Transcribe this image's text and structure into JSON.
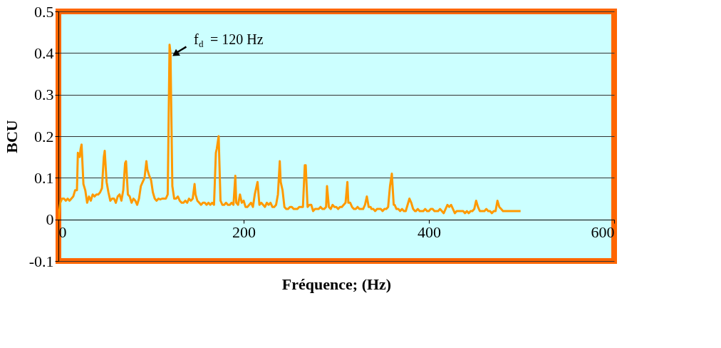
{
  "chart_data": {
    "type": "line",
    "xlabel": "Fréquence; (Hz)",
    "ylabel": "BCU",
    "x": [
      0,
      2,
      4,
      6,
      8,
      10,
      12,
      14,
      16,
      18,
      20,
      21,
      23,
      24,
      25,
      27,
      29,
      31,
      33,
      35,
      37,
      39,
      41,
      43,
      45,
      47,
      49,
      50,
      52,
      54,
      56,
      58,
      60,
      62,
      64,
      66,
      68,
      70,
      72,
      73,
      75,
      77,
      79,
      81,
      83,
      85,
      87,
      89,
      91,
      93,
      95,
      96,
      98,
      100,
      102,
      104,
      106,
      108,
      110,
      112,
      114,
      116,
      118,
      120,
      121,
      123,
      125,
      127,
      129,
      131,
      133,
      135,
      137,
      139,
      141,
      143,
      145,
      147,
      148,
      150,
      152,
      154,
      156,
      158,
      160,
      162,
      164,
      166,
      168,
      170,
      171,
      173,
      175,
      177,
      179,
      181,
      183,
      185,
      187,
      189,
      191,
      192,
      194,
      196,
      198,
      200,
      202,
      204,
      206,
      208,
      210,
      212,
      215,
      217,
      219,
      221,
      223,
      225,
      227,
      229,
      231,
      233,
      235,
      237,
      239,
      240,
      242,
      244,
      246,
      248,
      250,
      252,
      254,
      256,
      258,
      260,
      262,
      264,
      266,
      267,
      269,
      271,
      273,
      275,
      277,
      279,
      281,
      283,
      285,
      287,
      289,
      290,
      292,
      294,
      296,
      298,
      300,
      302,
      304,
      306,
      308,
      310,
      312,
      313,
      315,
      317,
      319,
      321,
      323,
      325,
      327,
      329,
      331,
      333,
      335,
      337,
      338,
      340,
      342,
      344,
      346,
      348,
      350,
      352,
      354,
      356,
      358,
      360,
      362,
      363,
      365,
      367,
      369,
      371,
      373,
      375,
      377,
      379,
      381,
      383,
      385,
      386,
      388,
      390,
      392,
      394,
      396,
      398,
      400,
      402,
      404,
      406,
      408,
      410,
      412,
      414,
      416,
      418,
      420,
      422,
      424,
      426,
      428,
      430,
      432,
      434,
      436,
      437,
      439,
      441,
      443,
      445,
      447,
      449,
      451,
      453,
      455,
      457,
      458,
      460,
      462,
      464,
      466,
      468,
      470,
      472,
      474,
      476,
      478,
      480,
      481,
      483,
      485,
      487,
      489,
      491,
      493,
      495,
      497,
      499
    ],
    "values": [
      0.0,
      0.04,
      0.05,
      0.05,
      0.045,
      0.05,
      0.045,
      0.05,
      0.055,
      0.07,
      0.07,
      0.16,
      0.15,
      0.17,
      0.18,
      0.085,
      0.07,
      0.04,
      0.055,
      0.045,
      0.06,
      0.055,
      0.06,
      0.06,
      0.065,
      0.075,
      0.15,
      0.165,
      0.09,
      0.065,
      0.045,
      0.05,
      0.05,
      0.04,
      0.055,
      0.06,
      0.045,
      0.07,
      0.135,
      0.14,
      0.06,
      0.055,
      0.04,
      0.05,
      0.045,
      0.035,
      0.05,
      0.08,
      0.09,
      0.1,
      0.14,
      0.12,
      0.105,
      0.095,
      0.065,
      0.05,
      0.045,
      0.05,
      0.048,
      0.05,
      0.05,
      0.05,
      0.06,
      0.42,
      0.4,
      0.08,
      0.05,
      0.05,
      0.055,
      0.045,
      0.04,
      0.04,
      0.045,
      0.04,
      0.05,
      0.045,
      0.05,
      0.085,
      0.06,
      0.045,
      0.04,
      0.035,
      0.04,
      0.04,
      0.035,
      0.04,
      0.035,
      0.04,
      0.035,
      0.16,
      0.17,
      0.2,
      0.045,
      0.035,
      0.035,
      0.04,
      0.035,
      0.035,
      0.04,
      0.035,
      0.105,
      0.04,
      0.035,
      0.06,
      0.04,
      0.045,
      0.03,
      0.03,
      0.035,
      0.04,
      0.03,
      0.06,
      0.09,
      0.035,
      0.04,
      0.035,
      0.03,
      0.04,
      0.035,
      0.04,
      0.03,
      0.03,
      0.035,
      0.06,
      0.14,
      0.09,
      0.07,
      0.03,
      0.025,
      0.025,
      0.03,
      0.03,
      0.025,
      0.025,
      0.025,
      0.03,
      0.03,
      0.03,
      0.13,
      0.13,
      0.03,
      0.035,
      0.035,
      0.02,
      0.025,
      0.025,
      0.025,
      0.03,
      0.025,
      0.025,
      0.03,
      0.08,
      0.03,
      0.025,
      0.035,
      0.03,
      0.03,
      0.025,
      0.03,
      0.03,
      0.035,
      0.04,
      0.09,
      0.04,
      0.04,
      0.03,
      0.025,
      0.025,
      0.03,
      0.025,
      0.025,
      0.025,
      0.035,
      0.055,
      0.03,
      0.03,
      0.025,
      0.025,
      0.02,
      0.025,
      0.025,
      0.025,
      0.02,
      0.025,
      0.025,
      0.03,
      0.08,
      0.11,
      0.035,
      0.035,
      0.025,
      0.025,
      0.02,
      0.025,
      0.02,
      0.02,
      0.035,
      0.05,
      0.04,
      0.025,
      0.02,
      0.02,
      0.025,
      0.02,
      0.02,
      0.02,
      0.025,
      0.02,
      0.02,
      0.025,
      0.025,
      0.02,
      0.02,
      0.02,
      0.025,
      0.02,
      0.015,
      0.025,
      0.035,
      0.03,
      0.035,
      0.025,
      0.015,
      0.02,
      0.02,
      0.02,
      0.02,
      0.02,
      0.015,
      0.02,
      0.015,
      0.02,
      0.02,
      0.025,
      0.045,
      0.03,
      0.02,
      0.02,
      0.02,
      0.02,
      0.025,
      0.02,
      0.02,
      0.015,
      0.02,
      0.02,
      0.045,
      0.03,
      0.025,
      0.02,
      0.02,
      0.02,
      0.02,
      0.02,
      0.02,
      0.02,
      0.02,
      0.02,
      0.02,
      0.02
    ],
    "color": "#ff9900",
    "xlim": [
      0,
      600
    ],
    "xticks": [
      0,
      200,
      400,
      600
    ],
    "ylim": [
      -0.1,
      0.5
    ],
    "yticks": [
      -0.1,
      0,
      0.1,
      0.2,
      0.3,
      0.4,
      0.5
    ],
    "grid": "y",
    "marker": "none",
    "line_style": "solid",
    "annotations": [
      {
        "text": "f$_{d}$ = 120 Hz",
        "x": 120,
        "y": 0.4
      }
    ]
  }
}
